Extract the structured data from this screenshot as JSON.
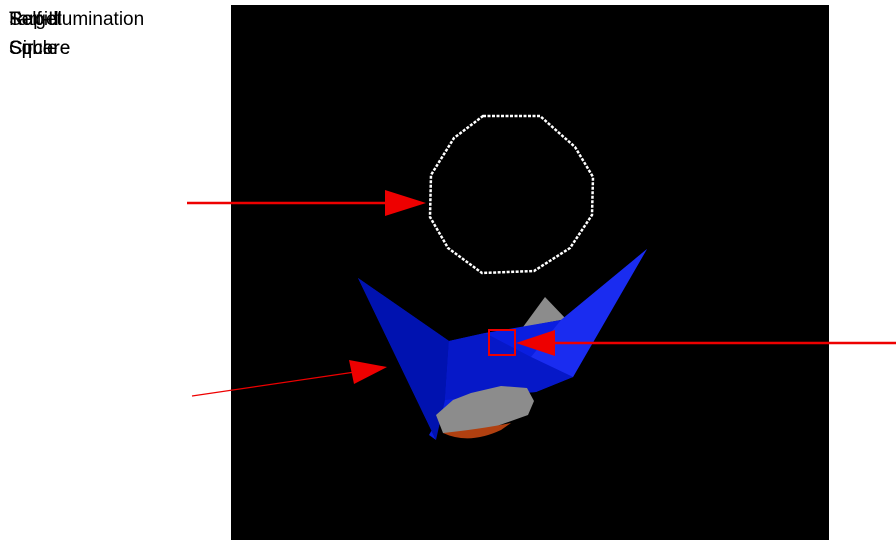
{
  "labels": {
    "top_group": [
      "Rapid",
      "Target",
      "Self-Illumination"
    ],
    "bottom_group": [
      "Circle",
      "Sphere",
      "Square"
    ]
  },
  "colors": {
    "viewport_bg": "#000000",
    "circle": "#ffffff",
    "arrow": "#ee0000",
    "shape_blue": "#0a1ee0",
    "shape_dark_blue": "#0012b0",
    "shape_gray": "#8c8c8c",
    "shape_orange": "#b04010"
  },
  "icons": {
    "arrow_left_target": "arrow-icon",
    "circle_outline": "circle-icon",
    "square_marker": "square-icon"
  }
}
